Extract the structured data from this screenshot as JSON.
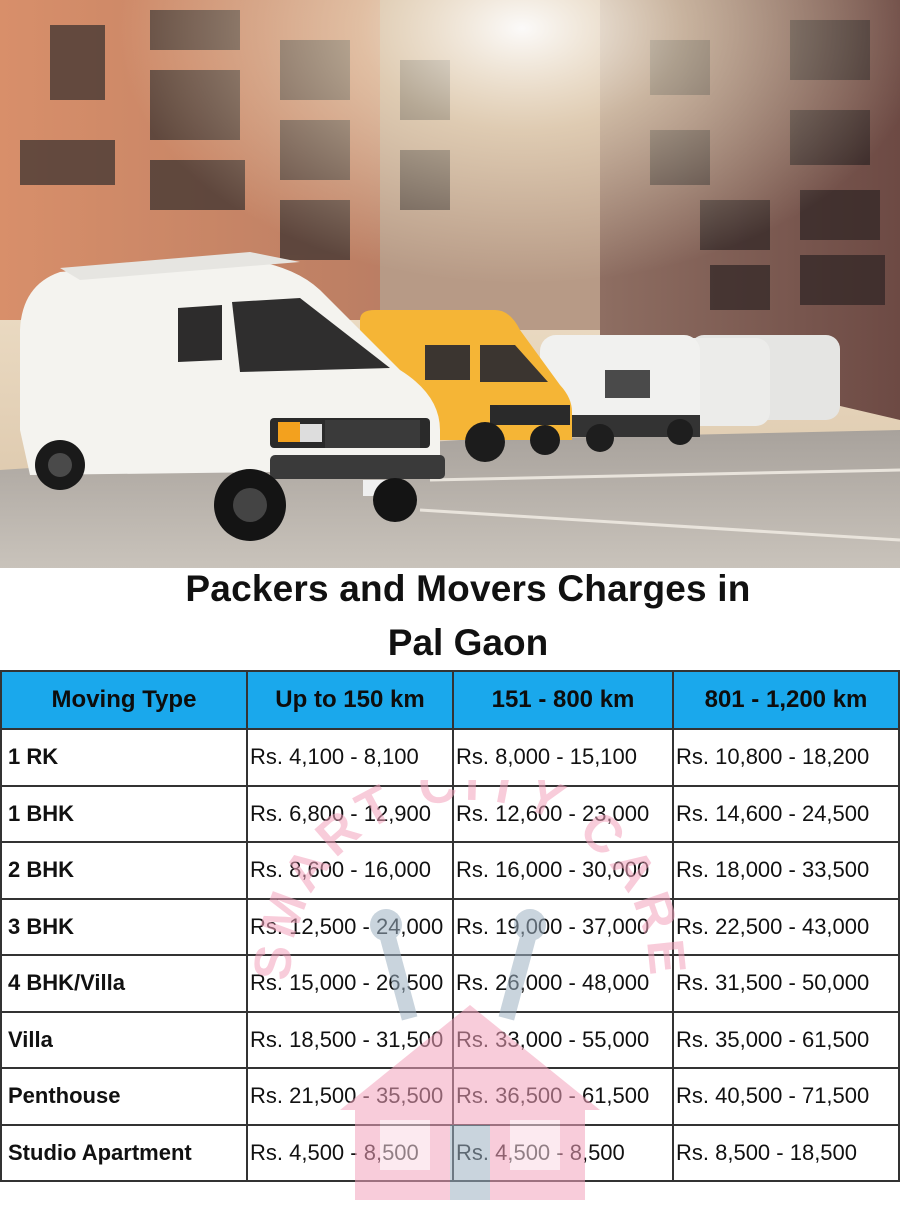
{
  "heading": {
    "line1": "Packers and Movers Charges in",
    "line2": "Pal Gaon"
  },
  "hero": {
    "icon": "moving-vans-photo"
  },
  "watermark": {
    "text": "SMART CITY CARE",
    "icon": "house-wrench-logo",
    "color": "#f4a3bd"
  },
  "table": {
    "header_color": "#1aa8ec",
    "headers": [
      "Moving Type",
      "Up to 150 km",
      "151 - 800 km",
      "801 - 1,200 km"
    ],
    "rows": [
      [
        "1 RK",
        "Rs. 4,100 - 8,100",
        "Rs. 8,000 - 15,100",
        "Rs. 10,800 - 18,200"
      ],
      [
        "1 BHK",
        "Rs. 6,800 - 12,900",
        "Rs. 12,600 - 23,000",
        "Rs. 14,600 - 24,500"
      ],
      [
        "2 BHK",
        "Rs. 8,600 - 16,000",
        "Rs. 16,000 - 30,000",
        "Rs. 18,000 - 33,500"
      ],
      [
        "3 BHK",
        "Rs. 12,500 - 24,000",
        "Rs. 19,000 - 37,000",
        "Rs. 22,500 - 43,000"
      ],
      [
        "4 BHK/Villa",
        "Rs. 15,000 - 26,500",
        "Rs. 26,000 - 48,000",
        "Rs. 31,500 - 50,000"
      ],
      [
        "Villa",
        "Rs. 18,500 - 31,500",
        "Rs. 33,000 - 55,000",
        "Rs. 35,000 - 61,500"
      ],
      [
        "Penthouse",
        "Rs. 21,500 - 35,500",
        "Rs. 36,500 - 61,500",
        "Rs. 40,500 - 71,500"
      ],
      [
        "Studio Apartment",
        "Rs. 4,500 - 8,500",
        "Rs. 4,500 - 8,500",
        "Rs. 8,500 - 18,500"
      ]
    ]
  }
}
